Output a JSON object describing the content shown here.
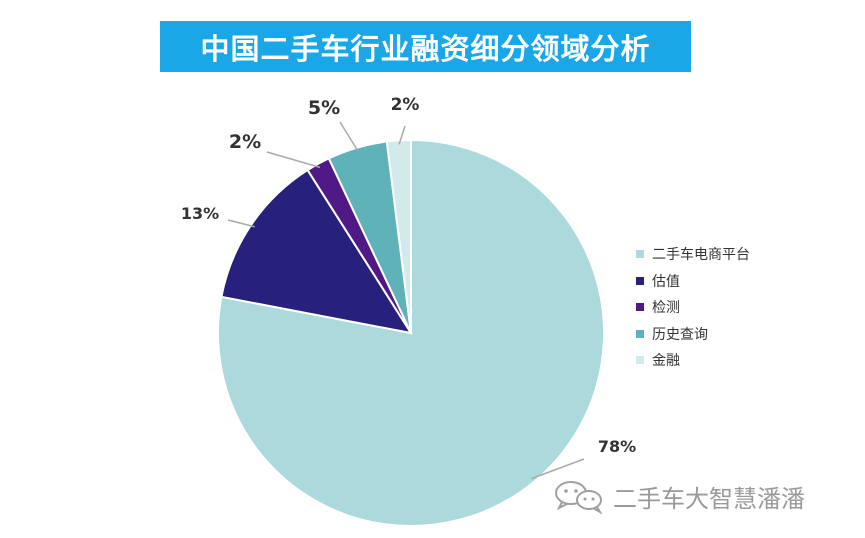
{
  "chart_data": {
    "type": "pie",
    "title": "中国二手车行业融资细分领域分析",
    "categories": [
      "二手车电商平台",
      "估值",
      "检测",
      "历史查询",
      "金融"
    ],
    "values": [
      78,
      13,
      2,
      5,
      2
    ],
    "value_labels": [
      "78%",
      "13%",
      "2%",
      "5%",
      "2%"
    ],
    "colors": [
      "#acd9dc",
      "#27207c",
      "#4f1a86",
      "#5fb3b8",
      "#d2eaec"
    ],
    "legend_position": "right",
    "start": "12 o'clock",
    "direction": "clockwise"
  },
  "watermark": {
    "icon": "wechat-icon",
    "text": "二手车大智慧潘潘"
  }
}
